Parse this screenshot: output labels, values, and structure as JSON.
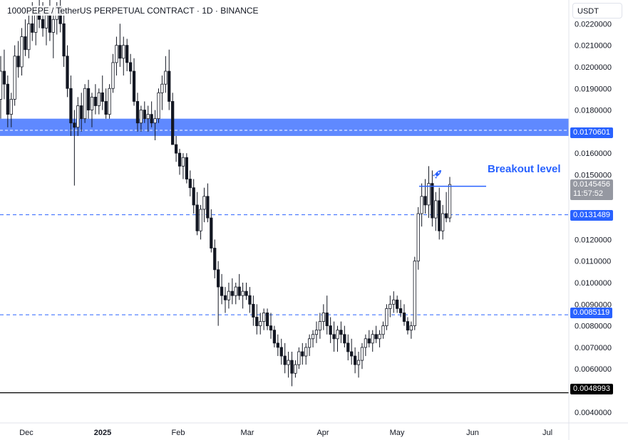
{
  "header": {
    "title": "1000PEPE / TetherUS PERPETUAL CONTRACT · 1D · BINANCE",
    "currency": "USDT"
  },
  "annotations": {
    "breakout_label": "Breakout level",
    "rocket_icon": "rocket-icon"
  },
  "current_price": {
    "value": "0.0145456",
    "countdown": "11:57:52"
  },
  "colors": {
    "candle": "#131722",
    "zone": "#2962ff",
    "level_line": "#2962ff",
    "support_line": "#000000",
    "current_tag": "#9598a1"
  },
  "chart_data": {
    "type": "candlestick",
    "title": "1000PEPE / TetherUS PERPETUAL CONTRACT · 1D · BINANCE",
    "ylim": [
      0.0035,
      0.0231
    ],
    "x_ticks": [
      "Dec",
      "2025",
      "Feb",
      "Mar",
      "Apr",
      "May",
      "Jun",
      "Jul"
    ],
    "y_ticks": [
      "0.0220000",
      "0.0210000",
      "0.0200000",
      "0.0190000",
      "0.0180000",
      "0.0160000",
      "0.0150000",
      "0.0120000",
      "0.0110000",
      "0.0100000",
      "0.0090000",
      "0.0080000",
      "0.0070000",
      "0.0060000",
      "0.0040000"
    ],
    "levels": [
      {
        "kind": "zone",
        "from": 0.0168,
        "to": 0.0176,
        "label": "0.0170601",
        "value": 0.0170601
      },
      {
        "kind": "dashed",
        "value": 0.0131489,
        "label": "0.0131489"
      },
      {
        "kind": "dashed",
        "value": 0.0085119,
        "label": "0.0085119"
      },
      {
        "kind": "solid",
        "value": 0.0048993,
        "label": "0.0048993"
      },
      {
        "kind": "breakout",
        "value": 0.0145,
        "x_from": "2025-05-12",
        "x_to": "2025-06-04"
      }
    ],
    "grid": false,
    "candles_ohlc": [
      [
        0.0185,
        0.0205,
        0.0176,
        0.0198
      ],
      [
        0.0198,
        0.0208,
        0.0185,
        0.0192
      ],
      [
        0.0192,
        0.0196,
        0.0172,
        0.0178
      ],
      [
        0.0178,
        0.0188,
        0.0172,
        0.0185
      ],
      [
        0.0185,
        0.021,
        0.0182,
        0.0205
      ],
      [
        0.0205,
        0.0212,
        0.0195,
        0.02
      ],
      [
        0.02,
        0.0218,
        0.0196,
        0.0214
      ],
      [
        0.0214,
        0.0222,
        0.0205,
        0.0208
      ],
      [
        0.0208,
        0.0225,
        0.0204,
        0.022
      ],
      [
        0.022,
        0.023,
        0.0212,
        0.0216
      ],
      [
        0.0216,
        0.0228,
        0.021,
        0.0225
      ],
      [
        0.0225,
        0.0232,
        0.0218,
        0.0222
      ],
      [
        0.0222,
        0.023,
        0.0214,
        0.0218
      ],
      [
        0.0218,
        0.0226,
        0.021,
        0.0224
      ],
      [
        0.0224,
        0.0232,
        0.0212,
        0.0216
      ],
      [
        0.0216,
        0.0226,
        0.0204,
        0.0222
      ],
      [
        0.0222,
        0.023,
        0.0215,
        0.0228
      ],
      [
        0.0228,
        0.0232,
        0.0216,
        0.022
      ],
      [
        0.022,
        0.0225,
        0.02,
        0.0205
      ],
      [
        0.0205,
        0.021,
        0.0186,
        0.019
      ],
      [
        0.019,
        0.0196,
        0.0168,
        0.0174
      ],
      [
        0.0174,
        0.018,
        0.0145,
        0.0172
      ],
      [
        0.0172,
        0.0186,
        0.0168,
        0.0182
      ],
      [
        0.0182,
        0.0188,
        0.017,
        0.0176
      ],
      [
        0.0176,
        0.0192,
        0.0174,
        0.019
      ],
      [
        0.019,
        0.0194,
        0.0176,
        0.018
      ],
      [
        0.018,
        0.0188,
        0.0172,
        0.0186
      ],
      [
        0.0186,
        0.0192,
        0.0178,
        0.0182
      ],
      [
        0.0182,
        0.019,
        0.0178,
        0.0188
      ],
      [
        0.0188,
        0.0196,
        0.018,
        0.0184
      ],
      [
        0.0184,
        0.019,
        0.0176,
        0.0178
      ],
      [
        0.0178,
        0.0192,
        0.0176,
        0.019
      ],
      [
        0.019,
        0.0206,
        0.0188,
        0.0202
      ],
      [
        0.0202,
        0.0214,
        0.0196,
        0.021
      ],
      [
        0.021,
        0.022,
        0.02,
        0.0204
      ],
      [
        0.0204,
        0.0214,
        0.0196,
        0.021
      ],
      [
        0.021,
        0.0213,
        0.0198,
        0.0202
      ],
      [
        0.0202,
        0.0206,
        0.0192,
        0.0198
      ],
      [
        0.0198,
        0.0204,
        0.0182,
        0.0184
      ],
      [
        0.0184,
        0.0188,
        0.017,
        0.0174
      ],
      [
        0.0174,
        0.0182,
        0.017,
        0.018
      ],
      [
        0.018,
        0.0184,
        0.0174,
        0.0176
      ],
      [
        0.0176,
        0.0182,
        0.017,
        0.0178
      ],
      [
        0.0178,
        0.0184,
        0.0172,
        0.0174
      ],
      [
        0.0174,
        0.018,
        0.0166,
        0.0176
      ],
      [
        0.0176,
        0.019,
        0.0174,
        0.0188
      ],
      [
        0.0188,
        0.0196,
        0.018,
        0.0192
      ],
      [
        0.0192,
        0.0205,
        0.0188,
        0.0198
      ],
      [
        0.0198,
        0.0208,
        0.018,
        0.0184
      ],
      [
        0.0184,
        0.0188,
        0.0168,
        0.0164
      ],
      [
        0.0164,
        0.0168,
        0.0156,
        0.016
      ],
      [
        0.016,
        0.0162,
        0.015,
        0.0154
      ],
      [
        0.0154,
        0.016,
        0.0148,
        0.0158
      ],
      [
        0.0158,
        0.016,
        0.0146,
        0.0148
      ],
      [
        0.0148,
        0.0152,
        0.014,
        0.0144
      ],
      [
        0.0144,
        0.0148,
        0.0132,
        0.0136
      ],
      [
        0.0136,
        0.0142,
        0.0122,
        0.0124
      ],
      [
        0.0124,
        0.0136,
        0.012,
        0.0134
      ],
      [
        0.0134,
        0.0144,
        0.0128,
        0.014
      ],
      [
        0.014,
        0.0146,
        0.0128,
        0.013
      ],
      [
        0.013,
        0.0134,
        0.0114,
        0.0116
      ],
      [
        0.0116,
        0.012,
        0.0102,
        0.0106
      ],
      [
        0.0106,
        0.011,
        0.008,
        0.0098
      ],
      [
        0.0098,
        0.0104,
        0.009,
        0.0094
      ],
      [
        0.0094,
        0.0098,
        0.0086,
        0.0092
      ],
      [
        0.0092,
        0.01,
        0.0088,
        0.0096
      ],
      [
        0.0096,
        0.0102,
        0.009,
        0.0094
      ],
      [
        0.0094,
        0.01,
        0.009,
        0.0098
      ],
      [
        0.0098,
        0.0104,
        0.0092,
        0.0094
      ],
      [
        0.0094,
        0.01,
        0.0088,
        0.0096
      ],
      [
        0.0096,
        0.01,
        0.0092,
        0.0094
      ],
      [
        0.0094,
        0.0098,
        0.0086,
        0.009
      ],
      [
        0.009,
        0.0094,
        0.008,
        0.0084
      ],
      [
        0.0084,
        0.009,
        0.0076,
        0.008
      ],
      [
        0.008,
        0.0086,
        0.0076,
        0.0082
      ],
      [
        0.0082,
        0.0088,
        0.0078,
        0.0086
      ],
      [
        0.0086,
        0.0088,
        0.0078,
        0.008
      ],
      [
        0.008,
        0.0086,
        0.0074,
        0.0078
      ],
      [
        0.0078,
        0.008,
        0.007,
        0.0072
      ],
      [
        0.0072,
        0.0076,
        0.0066,
        0.007
      ],
      [
        0.007,
        0.0074,
        0.0062,
        0.0066
      ],
      [
        0.0066,
        0.0072,
        0.0058,
        0.0062
      ],
      [
        0.0062,
        0.0068,
        0.0056,
        0.0064
      ],
      [
        0.0064,
        0.0068,
        0.0052,
        0.0058
      ],
      [
        0.0058,
        0.0064,
        0.0056,
        0.0062
      ],
      [
        0.0062,
        0.007,
        0.006,
        0.0068
      ],
      [
        0.0068,
        0.0072,
        0.0062,
        0.0066
      ],
      [
        0.0066,
        0.0072,
        0.0062,
        0.007
      ],
      [
        0.007,
        0.0076,
        0.0066,
        0.0074
      ],
      [
        0.0074,
        0.0078,
        0.007,
        0.0076
      ],
      [
        0.0076,
        0.0082,
        0.0072,
        0.0078
      ],
      [
        0.0078,
        0.0086,
        0.0074,
        0.0082
      ],
      [
        0.0082,
        0.009,
        0.0078,
        0.0086
      ],
      [
        0.0086,
        0.0094,
        0.0076,
        0.008
      ],
      [
        0.008,
        0.0084,
        0.0072,
        0.0076
      ],
      [
        0.0076,
        0.0082,
        0.0068,
        0.0074
      ],
      [
        0.0074,
        0.008,
        0.0068,
        0.0078
      ],
      [
        0.0078,
        0.0082,
        0.0072,
        0.0076
      ],
      [
        0.0076,
        0.008,
        0.007,
        0.0072
      ],
      [
        0.0072,
        0.0076,
        0.0064,
        0.0068
      ],
      [
        0.0068,
        0.0074,
        0.0062,
        0.0066
      ],
      [
        0.0066,
        0.007,
        0.0058,
        0.0062
      ],
      [
        0.0062,
        0.0068,
        0.0056,
        0.0064
      ],
      [
        0.0064,
        0.0072,
        0.006,
        0.007
      ],
      [
        0.007,
        0.0076,
        0.0066,
        0.0074
      ],
      [
        0.0074,
        0.0078,
        0.007,
        0.0072
      ],
      [
        0.0072,
        0.0078,
        0.0068,
        0.0076
      ],
      [
        0.0076,
        0.008,
        0.0072,
        0.0074
      ],
      [
        0.0074,
        0.0078,
        0.007,
        0.0076
      ],
      [
        0.0076,
        0.0082,
        0.0074,
        0.008
      ],
      [
        0.008,
        0.009,
        0.0078,
        0.0088
      ],
      [
        0.0088,
        0.0094,
        0.0084,
        0.009
      ],
      [
        0.009,
        0.0096,
        0.0086,
        0.0092
      ],
      [
        0.0092,
        0.0094,
        0.0086,
        0.0088
      ],
      [
        0.0088,
        0.0092,
        0.0084,
        0.0086
      ],
      [
        0.0086,
        0.009,
        0.008,
        0.0082
      ],
      [
        0.0082,
        0.0084,
        0.0076,
        0.0078
      ],
      [
        0.0078,
        0.0082,
        0.0074,
        0.008
      ],
      [
        0.008,
        0.0112,
        0.0078,
        0.011
      ],
      [
        0.011,
        0.0135,
        0.0106,
        0.0132
      ],
      [
        0.0132,
        0.0146,
        0.0126,
        0.014
      ],
      [
        0.014,
        0.0148,
        0.0132,
        0.0136
      ],
      [
        0.0136,
        0.0154,
        0.013,
        0.0146
      ],
      [
        0.0146,
        0.0152,
        0.0126,
        0.013
      ],
      [
        0.013,
        0.0142,
        0.0124,
        0.0138
      ],
      [
        0.0138,
        0.0144,
        0.012,
        0.0124
      ],
      [
        0.0124,
        0.0136,
        0.012,
        0.0132
      ],
      [
        0.0132,
        0.0142,
        0.0128,
        0.013
      ],
      [
        0.013,
        0.0149,
        0.0128,
        0.01455
      ]
    ]
  }
}
